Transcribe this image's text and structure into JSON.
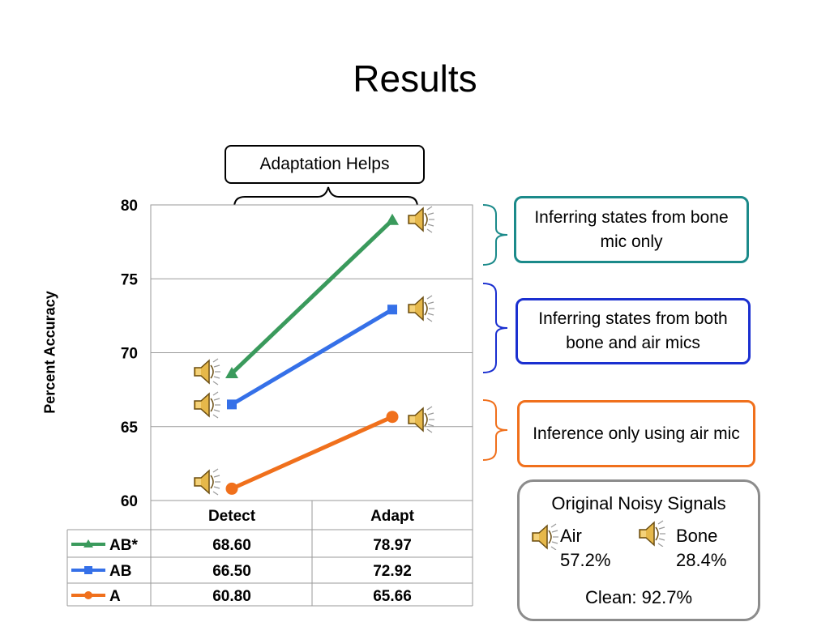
{
  "slide_title": "Results",
  "adaptation_callout": "Adaptation Helps",
  "callouts": {
    "bone_only": "Inferring states from bone mic only",
    "bone_air": "Inferring states from both bone and air mics",
    "air_only": "Inference only using air mic"
  },
  "colors": {
    "AB*": "#3a9a5c",
    "AB": "#3570e8",
    "A": "#f0701c",
    "teal_border": "#1b8a8a",
    "blue_border": "#1a2fd0",
    "orange_border": "#f0701c",
    "gray_border": "#8c8c8c"
  },
  "noisy_signals": {
    "title": "Original Noisy Signals",
    "air_label": "Air",
    "air_value": "57.2%",
    "bone_label": "Bone",
    "bone_value": "28.4%",
    "clean": "Clean: 92.7%"
  },
  "chart_data": {
    "type": "line",
    "categories": [
      "Detect",
      "Adapt"
    ],
    "ylabel": "Percent Accuracy",
    "ylim": [
      60,
      80
    ],
    "yticks": [
      60,
      65,
      70,
      75,
      80
    ],
    "grid": true,
    "series": [
      {
        "name": "AB*",
        "marker": "triangle",
        "values": [
          68.6,
          78.97
        ],
        "labels": [
          "68.60",
          "78.97"
        ]
      },
      {
        "name": "AB",
        "marker": "square",
        "values": [
          66.5,
          72.92
        ],
        "labels": [
          "66.50",
          "72.92"
        ]
      },
      {
        "name": "A",
        "marker": "circle",
        "values": [
          60.8,
          65.66
        ],
        "labels": [
          "60.80",
          "65.66"
        ]
      }
    ]
  }
}
